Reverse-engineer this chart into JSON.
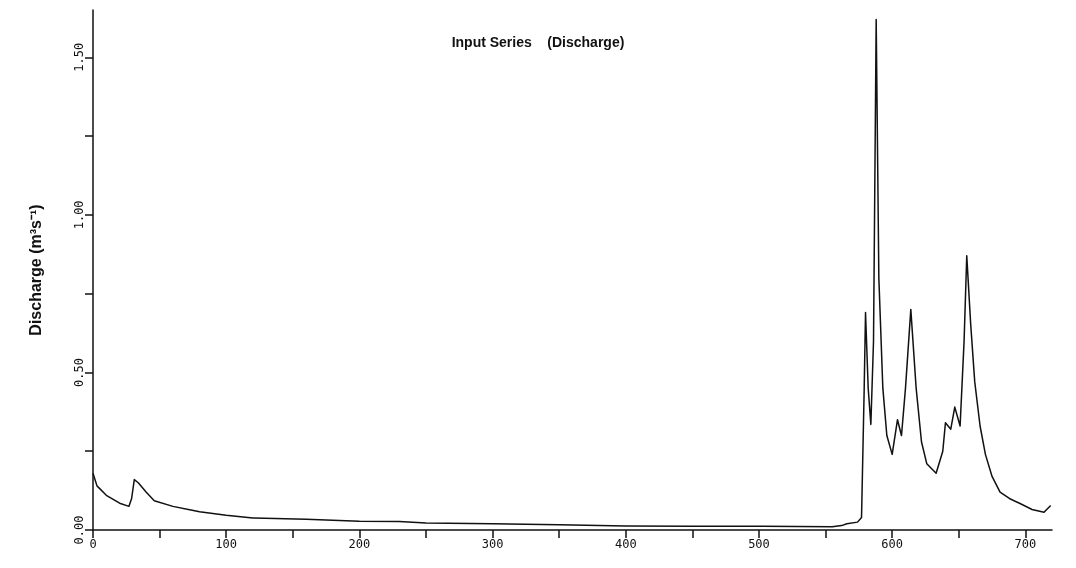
{
  "chart_data": {
    "type": "line",
    "title": "Input Series    (Discharge)",
    "ylabel": "Discharge (m³s⁻¹)",
    "x": [
      0,
      3,
      10,
      20,
      27,
      29,
      31,
      34,
      40,
      46,
      60,
      80,
      100,
      120,
      160,
      200,
      230,
      250,
      300,
      350,
      400,
      450,
      500,
      555,
      562,
      566,
      574,
      577,
      579,
      580,
      582,
      584,
      586,
      588,
      590,
      593,
      596,
      600,
      604,
      607,
      610,
      614,
      618,
      622,
      626,
      633,
      638,
      640,
      644,
      647,
      651,
      654,
      656,
      659,
      662,
      666,
      670,
      675,
      681,
      688,
      696,
      705,
      714,
      719
    ],
    "series": [
      {
        "color": "#111111",
        "values": [
          0.18,
          0.14,
          0.11,
          0.085,
          0.075,
          0.1,
          0.16,
          0.15,
          0.12,
          0.093,
          0.075,
          0.058,
          0.047,
          0.038,
          0.034,
          0.028,
          0.027,
          0.022,
          0.02,
          0.017,
          0.013,
          0.012,
          0.012,
          0.01,
          0.014,
          0.02,
          0.025,
          0.04,
          0.45,
          0.69,
          0.45,
          0.335,
          0.6,
          1.62,
          0.8,
          0.45,
          0.3,
          0.24,
          0.35,
          0.3,
          0.45,
          0.7,
          0.45,
          0.28,
          0.21,
          0.18,
          0.25,
          0.34,
          0.32,
          0.39,
          0.33,
          0.6,
          0.87,
          0.65,
          0.47,
          0.33,
          0.24,
          0.17,
          0.12,
          0.1,
          0.084,
          0.065,
          0.056,
          0.078
        ]
      }
    ],
    "xlim": [
      0,
      720
    ],
    "xticks": [
      0,
      {
        "value": 50,
        "label": null
      },
      100,
      {
        "value": 150,
        "label": null
      },
      200,
      {
        "value": 250,
        "label": null
      },
      300,
      {
        "value": 350,
        "label": null
      },
      400,
      {
        "value": 450,
        "label": null
      },
      500,
      {
        "value": 550,
        "label": null
      },
      600,
      {
        "value": 650,
        "label": null
      },
      700
    ],
    "ylim": [
      0,
      1.65
    ],
    "yticks": [
      {
        "value": 0,
        "label": "0.00"
      },
      {
        "value": 0.25,
        "label": null
      },
      {
        "value": 0.5,
        "label": "0.50"
      },
      {
        "value": 0.75,
        "label": null
      },
      {
        "value": 1,
        "label": "1.00"
      },
      {
        "value": 1.25,
        "label": null
      },
      {
        "value": 1.5,
        "label": "1.50"
      }
    ],
    "grid": false,
    "marker": "none",
    "line_style": "solid"
  }
}
